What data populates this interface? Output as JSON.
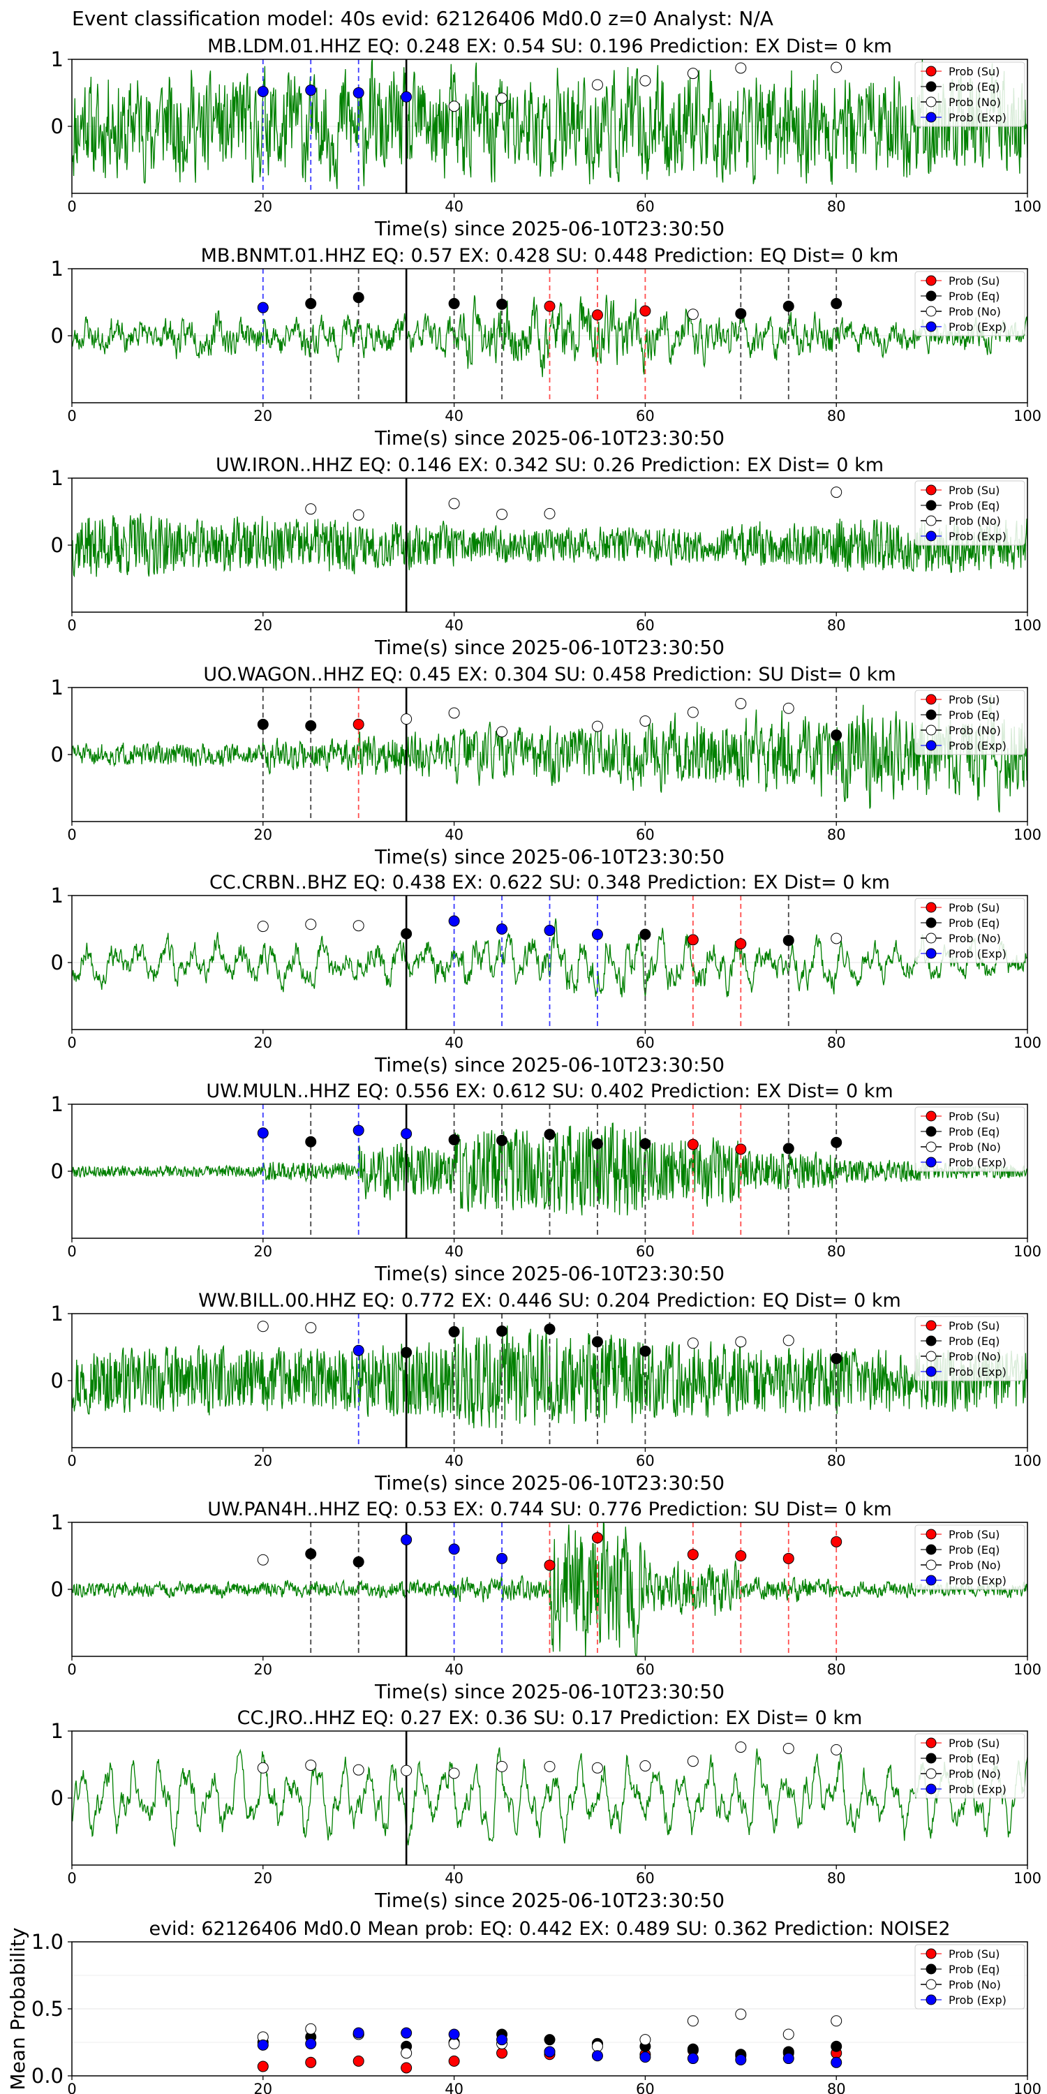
{
  "figure": {
    "title": "Event classification model: 40s evid: 62126406 Md0.0 z=0 Analyst: N/A"
  },
  "colors": {
    "waveform": "#008000",
    "su": "#ff0000",
    "eq": "#000000",
    "no": "#ffffff",
    "exp": "#0000ff",
    "su_line": "#ff4d4d",
    "eq_line": "#444444",
    "exp_line": "#3b3bff"
  },
  "legend_labels": [
    "Prob (Su)",
    "Prob (Eq)",
    "Prob (No)",
    "Prob (Exp)"
  ],
  "chart_data": [
    {
      "type": "scatter",
      "title": "MB.LDM.01.HHZ   EQ: 0.248  EX: 0.54  SU: 0.196   Prediction: EX    Dist= 0 km",
      "xlabel": "Time(s) since 2025-06-10T23:30:50",
      "xlim": [
        0,
        100
      ],
      "ylim": [
        -1,
        1
      ],
      "xticks": [
        0,
        20,
        40,
        60,
        80,
        100
      ],
      "yticks": [
        0,
        1
      ],
      "legend_position": "top-right",
      "onset_x": 35,
      "waveform_seed": 11,
      "waveform_amp": [
        0.75,
        0.75,
        0.75,
        0.75,
        0.75,
        0.75,
        0.75,
        0.75,
        0.75,
        0.75
      ],
      "waveform_smooth": 0.35,
      "points": [
        {
          "x": 20,
          "y": 0.52,
          "class": "Exp"
        },
        {
          "x": 25,
          "y": 0.54,
          "class": "Exp"
        },
        {
          "x": 30,
          "y": 0.5,
          "class": "Exp"
        },
        {
          "x": 35,
          "y": 0.44,
          "class": "Exp"
        },
        {
          "x": 40,
          "y": 0.3,
          "class": "No"
        },
        {
          "x": 45,
          "y": 0.42,
          "class": "No"
        },
        {
          "x": 55,
          "y": 0.62,
          "class": "No"
        },
        {
          "x": 60,
          "y": 0.68,
          "class": "No"
        },
        {
          "x": 65,
          "y": 0.79,
          "class": "No"
        },
        {
          "x": 70,
          "y": 0.87,
          "class": "No"
        },
        {
          "x": 80,
          "y": 0.88,
          "class": "No"
        }
      ]
    },
    {
      "type": "scatter",
      "title": "MB.BNMT.01.HHZ   EQ: 0.57  EX: 0.428  SU: 0.448   Prediction: EQ    Dist= 0 km",
      "xlabel": "Time(s) since 2025-06-10T23:30:50",
      "xlim": [
        0,
        100
      ],
      "ylim": [
        -1,
        1
      ],
      "xticks": [
        0,
        20,
        40,
        60,
        80,
        100
      ],
      "yticks": [
        0,
        1
      ],
      "legend_position": "top-right",
      "onset_x": 35,
      "waveform_seed": 23,
      "waveform_amp": [
        0.3,
        0.35,
        0.35,
        0.35,
        0.55,
        0.6,
        0.45,
        0.35,
        0.3,
        0.3
      ],
      "waveform_smooth": 0.55,
      "points": [
        {
          "x": 20,
          "y": 0.42,
          "class": "Exp"
        },
        {
          "x": 25,
          "y": 0.48,
          "class": "Eq"
        },
        {
          "x": 30,
          "y": 0.57,
          "class": "Eq"
        },
        {
          "x": 40,
          "y": 0.48,
          "class": "Eq"
        },
        {
          "x": 45,
          "y": 0.47,
          "class": "Eq"
        },
        {
          "x": 50,
          "y": 0.44,
          "class": "Su"
        },
        {
          "x": 55,
          "y": 0.31,
          "class": "Su"
        },
        {
          "x": 60,
          "y": 0.37,
          "class": "Su"
        },
        {
          "x": 65,
          "y": 0.32,
          "class": "No"
        },
        {
          "x": 70,
          "y": 0.33,
          "class": "Eq"
        },
        {
          "x": 75,
          "y": 0.44,
          "class": "Eq"
        },
        {
          "x": 80,
          "y": 0.48,
          "class": "Eq"
        }
      ]
    },
    {
      "type": "scatter",
      "title": "UW.IRON..HHZ   EQ: 0.146  EX: 0.342  SU: 0.26   Prediction: EX    Dist= 0 km",
      "xlabel": "Time(s) since 2025-06-10T23:30:50",
      "xlim": [
        0,
        100
      ],
      "ylim": [
        -1,
        1
      ],
      "xticks": [
        0,
        20,
        40,
        60,
        80,
        100
      ],
      "yticks": [
        0,
        1
      ],
      "legend_position": "top-right",
      "onset_x": 35,
      "waveform_seed": 37,
      "waveform_amp": [
        0.35,
        0.3,
        0.3,
        0.25,
        0.2,
        0.2,
        0.2,
        0.25,
        0.3,
        0.3
      ],
      "waveform_smooth": 0.15,
      "points": [
        {
          "x": 25,
          "y": 0.54,
          "class": "No"
        },
        {
          "x": 30,
          "y": 0.45,
          "class": "No"
        },
        {
          "x": 40,
          "y": 0.62,
          "class": "No"
        },
        {
          "x": 45,
          "y": 0.46,
          "class": "No"
        },
        {
          "x": 50,
          "y": 0.47,
          "class": "No"
        },
        {
          "x": 80,
          "y": 0.79,
          "class": "No"
        }
      ]
    },
    {
      "type": "scatter",
      "title": "UO.WAGON..HHZ   EQ: 0.45  EX: 0.304  SU: 0.458   Prediction: SU    Dist= 0 km",
      "xlabel": "Time(s) since 2025-06-10T23:30:50",
      "xlim": [
        0,
        100
      ],
      "ylim": [
        -1,
        1
      ],
      "xticks": [
        0,
        20,
        40,
        60,
        80,
        100
      ],
      "yticks": [
        0,
        1
      ],
      "legend_position": "top-right",
      "onset_x": 35,
      "waveform_seed": 51,
      "waveform_amp": [
        0.15,
        0.15,
        0.2,
        0.3,
        0.35,
        0.4,
        0.45,
        0.5,
        0.6,
        0.65
      ],
      "waveform_smooth": 0.3,
      "points": [
        {
          "x": 20,
          "y": 0.45,
          "class": "Eq"
        },
        {
          "x": 25,
          "y": 0.43,
          "class": "Eq"
        },
        {
          "x": 30,
          "y": 0.45,
          "class": "Su"
        },
        {
          "x": 35,
          "y": 0.53,
          "class": "No"
        },
        {
          "x": 40,
          "y": 0.62,
          "class": "No"
        },
        {
          "x": 45,
          "y": 0.34,
          "class": "No"
        },
        {
          "x": 55,
          "y": 0.42,
          "class": "No"
        },
        {
          "x": 60,
          "y": 0.5,
          "class": "No"
        },
        {
          "x": 65,
          "y": 0.63,
          "class": "No"
        },
        {
          "x": 70,
          "y": 0.76,
          "class": "No"
        },
        {
          "x": 75,
          "y": 0.69,
          "class": "No"
        },
        {
          "x": 80,
          "y": 0.29,
          "class": "Eq"
        }
      ]
    },
    {
      "type": "scatter",
      "title": "CC.CRBN..BHZ   EQ: 0.438  EX: 0.622  SU: 0.348   Prediction: EX    Dist= 0 km",
      "xlabel": "Time(s) since 2025-06-10T23:30:50",
      "xlim": [
        0,
        100
      ],
      "ylim": [
        -1,
        1
      ],
      "xticks": [
        0,
        20,
        40,
        60,
        80,
        100
      ],
      "yticks": [
        0,
        1
      ],
      "legend_position": "top-right",
      "onset_x": 35,
      "waveform_seed": 67,
      "waveform_amp": [
        0.4,
        0.45,
        0.45,
        0.45,
        0.5,
        0.6,
        0.55,
        0.45,
        0.4,
        0.4
      ],
      "waveform_smooth": 0.7,
      "points": [
        {
          "x": 20,
          "y": 0.54,
          "class": "No"
        },
        {
          "x": 25,
          "y": 0.57,
          "class": "No"
        },
        {
          "x": 30,
          "y": 0.55,
          "class": "No"
        },
        {
          "x": 35,
          "y": 0.43,
          "class": "Eq"
        },
        {
          "x": 40,
          "y": 0.62,
          "class": "Exp"
        },
        {
          "x": 45,
          "y": 0.5,
          "class": "Exp"
        },
        {
          "x": 50,
          "y": 0.48,
          "class": "Exp"
        },
        {
          "x": 55,
          "y": 0.42,
          "class": "Exp"
        },
        {
          "x": 60,
          "y": 0.42,
          "class": "Eq"
        },
        {
          "x": 65,
          "y": 0.34,
          "class": "Su"
        },
        {
          "x": 70,
          "y": 0.28,
          "class": "Su"
        },
        {
          "x": 75,
          "y": 0.33,
          "class": "Eq"
        },
        {
          "x": 80,
          "y": 0.36,
          "class": "No"
        }
      ]
    },
    {
      "type": "scatter",
      "title": "UW.MULN..HHZ   EQ: 0.556  EX: 0.612  SU: 0.402   Prediction: EX    Dist= 0 km",
      "xlabel": "Time(s) since 2025-06-10T23:30:50",
      "xlim": [
        0,
        100
      ],
      "ylim": [
        -1,
        1
      ],
      "xticks": [
        0,
        20,
        40,
        60,
        80,
        100
      ],
      "yticks": [
        0,
        1
      ],
      "legend_position": "top-right",
      "onset_x": 35,
      "waveform_seed": 79,
      "waveform_amp": [
        0.06,
        0.06,
        0.1,
        0.3,
        0.45,
        0.5,
        0.35,
        0.2,
        0.12,
        0.08
      ],
      "waveform_smooth": 0.1,
      "points": [
        {
          "x": 20,
          "y": 0.57,
          "class": "Exp"
        },
        {
          "x": 25,
          "y": 0.44,
          "class": "Eq"
        },
        {
          "x": 30,
          "y": 0.61,
          "class": "Exp"
        },
        {
          "x": 35,
          "y": 0.56,
          "class": "Exp"
        },
        {
          "x": 40,
          "y": 0.47,
          "class": "Eq"
        },
        {
          "x": 45,
          "y": 0.46,
          "class": "Eq"
        },
        {
          "x": 50,
          "y": 0.55,
          "class": "Eq"
        },
        {
          "x": 55,
          "y": 0.41,
          "class": "Eq"
        },
        {
          "x": 60,
          "y": 0.41,
          "class": "Eq"
        },
        {
          "x": 65,
          "y": 0.4,
          "class": "Su"
        },
        {
          "x": 70,
          "y": 0.33,
          "class": "Su"
        },
        {
          "x": 75,
          "y": 0.34,
          "class": "Eq"
        },
        {
          "x": 80,
          "y": 0.43,
          "class": "Eq"
        }
      ]
    },
    {
      "type": "scatter",
      "title": "WW.BILL.00.HHZ   EQ: 0.772  EX: 0.446  SU: 0.204   Prediction: EQ    Dist= 0 km",
      "xlabel": "Time(s) since 2025-06-10T23:30:50",
      "xlim": [
        0,
        100
      ],
      "ylim": [
        -1,
        1
      ],
      "xticks": [
        0,
        20,
        40,
        60,
        80,
        100
      ],
      "yticks": [
        0,
        1
      ],
      "legend_position": "top-right",
      "onset_x": 35,
      "waveform_seed": 97,
      "waveform_amp": [
        0.35,
        0.35,
        0.35,
        0.4,
        0.55,
        0.5,
        0.4,
        0.35,
        0.35,
        0.35
      ],
      "waveform_smooth": 0.12,
      "points": [
        {
          "x": 20,
          "y": 0.81,
          "class": "No"
        },
        {
          "x": 25,
          "y": 0.79,
          "class": "No"
        },
        {
          "x": 30,
          "y": 0.45,
          "class": "Exp"
        },
        {
          "x": 35,
          "y": 0.42,
          "class": "Eq"
        },
        {
          "x": 40,
          "y": 0.73,
          "class": "Eq"
        },
        {
          "x": 45,
          "y": 0.74,
          "class": "Eq"
        },
        {
          "x": 50,
          "y": 0.77,
          "class": "Eq"
        },
        {
          "x": 55,
          "y": 0.58,
          "class": "Eq"
        },
        {
          "x": 60,
          "y": 0.44,
          "class": "Eq"
        },
        {
          "x": 65,
          "y": 0.56,
          "class": "No"
        },
        {
          "x": 70,
          "y": 0.58,
          "class": "No"
        },
        {
          "x": 75,
          "y": 0.6,
          "class": "No"
        },
        {
          "x": 80,
          "y": 0.33,
          "class": "Eq"
        }
      ]
    },
    {
      "type": "scatter",
      "title": "UW.PAN4H..HHZ   EQ: 0.53  EX: 0.744  SU: 0.776   Prediction: SU    Dist= 0 km",
      "xlabel": "Time(s) since 2025-06-10T23:30:50",
      "xlim": [
        0,
        100
      ],
      "ylim": [
        -1,
        1
      ],
      "xticks": [
        0,
        20,
        40,
        60,
        80,
        100
      ],
      "yticks": [
        0,
        1
      ],
      "legend_position": "top-right",
      "onset_x": 35,
      "waveform_seed": 113,
      "waveform_amp": [
        0.1,
        0.1,
        0.1,
        0.12,
        0.15,
        0.85,
        0.35,
        0.15,
        0.1,
        0.1
      ],
      "waveform_smooth": 0.3,
      "points": [
        {
          "x": 20,
          "y": 0.44,
          "class": "No"
        },
        {
          "x": 25,
          "y": 0.53,
          "class": "Eq"
        },
        {
          "x": 30,
          "y": 0.41,
          "class": "Eq"
        },
        {
          "x": 35,
          "y": 0.74,
          "class": "Exp"
        },
        {
          "x": 40,
          "y": 0.6,
          "class": "Exp"
        },
        {
          "x": 45,
          "y": 0.46,
          "class": "Exp"
        },
        {
          "x": 50,
          "y": 0.36,
          "class": "Su"
        },
        {
          "x": 55,
          "y": 0.77,
          "class": "Su"
        },
        {
          "x": 65,
          "y": 0.52,
          "class": "Su"
        },
        {
          "x": 70,
          "y": 0.5,
          "class": "Su"
        },
        {
          "x": 75,
          "y": 0.46,
          "class": "Su"
        },
        {
          "x": 80,
          "y": 0.71,
          "class": "Su"
        }
      ]
    },
    {
      "type": "scatter",
      "title": "CC.JRO..HHZ   EQ: 0.27  EX: 0.36  SU: 0.17   Prediction: EX    Dist= 0 km",
      "xlabel": "Time(s) since 2025-06-10T23:30:50",
      "xlim": [
        0,
        100
      ],
      "ylim": [
        -1,
        1
      ],
      "xticks": [
        0,
        20,
        40,
        60,
        80,
        100
      ],
      "yticks": [
        0,
        1
      ],
      "legend_position": "top-right",
      "onset_x": 35,
      "waveform_seed": 131,
      "waveform_amp": [
        0.75,
        0.75,
        0.75,
        0.75,
        0.75,
        0.75,
        0.75,
        0.75,
        0.75,
        0.75
      ],
      "waveform_smooth": 0.8,
      "points": [
        {
          "x": 20,
          "y": 0.45,
          "class": "No"
        },
        {
          "x": 25,
          "y": 0.49,
          "class": "No"
        },
        {
          "x": 30,
          "y": 0.42,
          "class": "No"
        },
        {
          "x": 35,
          "y": 0.41,
          "class": "No"
        },
        {
          "x": 40,
          "y": 0.37,
          "class": "No"
        },
        {
          "x": 45,
          "y": 0.47,
          "class": "No"
        },
        {
          "x": 50,
          "y": 0.47,
          "class": "No"
        },
        {
          "x": 55,
          "y": 0.45,
          "class": "No"
        },
        {
          "x": 60,
          "y": 0.48,
          "class": "No"
        },
        {
          "x": 65,
          "y": 0.55,
          "class": "No"
        },
        {
          "x": 70,
          "y": 0.76,
          "class": "No"
        },
        {
          "x": 75,
          "y": 0.74,
          "class": "No"
        },
        {
          "x": 80,
          "y": 0.72,
          "class": "No"
        }
      ]
    },
    {
      "type": "scatter",
      "title": "evid: 62126406  Md0.0   Mean prob:    EQ: 0.442  EX: 0.489  SU: 0.362   Prediction: NOISE2",
      "xlabel": "",
      "ylabel": "Mean Probability",
      "xlim": [
        0,
        100
      ],
      "ylim": [
        0,
        1
      ],
      "xticks": [
        0,
        20,
        40,
        60,
        80,
        100
      ],
      "yticks": [
        0.0,
        0.5,
        1.0
      ],
      "legend_position": "top-right",
      "series": [
        {
          "name": "Prob (Su)",
          "class": "Su",
          "x": [
            20,
            25,
            30,
            35,
            40,
            45,
            50,
            55,
            60,
            65,
            70,
            75,
            80
          ],
          "y": [
            0.07,
            0.1,
            0.11,
            0.06,
            0.11,
            0.17,
            0.16,
            0.24,
            0.16,
            0.19,
            0.15,
            0.17,
            0.17
          ]
        },
        {
          "name": "Prob (Eq)",
          "class": "Eq",
          "x": [
            20,
            25,
            30,
            35,
            40,
            45,
            50,
            55,
            60,
            65,
            70,
            75,
            80
          ],
          "y": [
            0.25,
            0.29,
            0.31,
            0.22,
            0.25,
            0.31,
            0.27,
            0.24,
            0.22,
            0.2,
            0.16,
            0.18,
            0.22
          ]
        },
        {
          "name": "Prob (No)",
          "class": "No",
          "x": [
            20,
            25,
            30,
            35,
            40,
            45,
            50,
            55,
            60,
            65,
            70,
            75,
            80
          ],
          "y": [
            0.29,
            0.35,
            0.31,
            0.17,
            0.24,
            0.24,
            0.18,
            0.22,
            0.27,
            0.41,
            0.46,
            0.31,
            0.41
          ]
        },
        {
          "name": "Prob (Exp)",
          "class": "Exp",
          "x": [
            20,
            25,
            30,
            35,
            40,
            45,
            50,
            55,
            60,
            65,
            70,
            75,
            80
          ],
          "y": [
            0.23,
            0.24,
            0.32,
            0.32,
            0.31,
            0.27,
            0.18,
            0.15,
            0.14,
            0.13,
            0.12,
            0.13,
            0.1
          ]
        }
      ]
    }
  ]
}
